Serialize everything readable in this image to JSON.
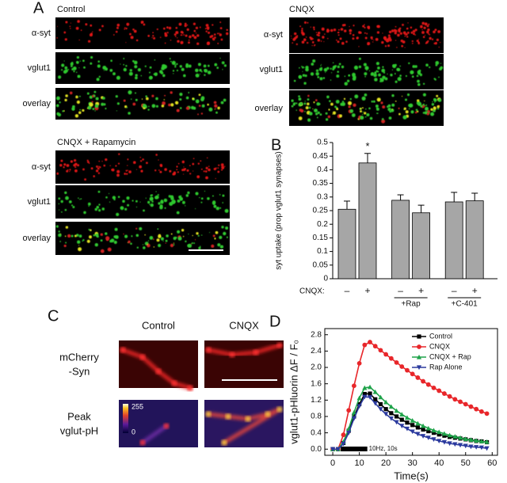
{
  "panels": {
    "a": {
      "label": "A",
      "control": "Control",
      "cnqx": "CNQX",
      "cnqx_rap": "CNQX + Rapamycin",
      "rows": [
        "α-syt",
        "vglut1",
        "overlay"
      ]
    },
    "b": {
      "label": "B"
    },
    "c": {
      "label": "C",
      "control": "Control",
      "cnqx": "CNQX",
      "row1": [
        "mCherry",
        "-Syn"
      ],
      "row2": [
        "Peak",
        "vglut-pH"
      ],
      "colorbar": [
        "255",
        "0"
      ]
    },
    "d": {
      "label": "D"
    }
  },
  "chart_data": [
    {
      "type": "bar",
      "ylabel": "syt uptake (prop vglut1 synapses)",
      "category_title": "CNQX:",
      "categories": [
        "–",
        "+",
        "–",
        "+",
        "–",
        "+"
      ],
      "group_labels": [
        null,
        "+Rap",
        "+C-401"
      ],
      "values": [
        0.255,
        0.425,
        0.288,
        0.242,
        0.282,
        0.286
      ],
      "errors": [
        0.03,
        0.035,
        0.02,
        0.028,
        0.035,
        0.028
      ],
      "color": "#a6a6a6",
      "annotation": "*",
      "ylim": [
        0,
        0.5
      ],
      "yticks": [
        0,
        0.05,
        0.1,
        0.15,
        0.2,
        0.25,
        0.3,
        0.35,
        0.4,
        0.45,
        0.5
      ]
    },
    {
      "type": "line",
      "ylabel": "vglut1-pHluorin ΔF / F₀",
      "xlabel": "Time(s)",
      "x": [
        0,
        2,
        4,
        6,
        8,
        10,
        12,
        14,
        16,
        18,
        20,
        22,
        24,
        26,
        28,
        30,
        32,
        34,
        36,
        38,
        40,
        42,
        44,
        46,
        48,
        50,
        52,
        54,
        56,
        58
      ],
      "series": [
        {
          "name": "Control",
          "color": "#000000",
          "marker": "square",
          "values": [
            0,
            0,
            0.15,
            0.45,
            0.8,
            1.1,
            1.35,
            1.36,
            1.22,
            1.1,
            0.98,
            0.88,
            0.8,
            0.72,
            0.65,
            0.59,
            0.53,
            0.48,
            0.44,
            0.4,
            0.36,
            0.33,
            0.3,
            0.28,
            0.26,
            0.24,
            0.22,
            0.2,
            0.19,
            0.17
          ]
        },
        {
          "name": "CNQX",
          "color": "#e8262a",
          "marker": "circle",
          "values": [
            0,
            0,
            0.35,
            0.95,
            1.55,
            2.1,
            2.55,
            2.62,
            2.52,
            2.42,
            2.32,
            2.22,
            2.12,
            2.02,
            1.93,
            1.84,
            1.75,
            1.66,
            1.58,
            1.5,
            1.43,
            1.36,
            1.29,
            1.22,
            1.16,
            1.1,
            1.04,
            0.98,
            0.92,
            0.87
          ]
        },
        {
          "name": "CNQX + Rap",
          "color": "#1fa34a",
          "marker": "triangle-up",
          "values": [
            0,
            0,
            0.18,
            0.5,
            0.9,
            1.25,
            1.5,
            1.52,
            1.4,
            1.27,
            1.15,
            1.04,
            0.94,
            0.85,
            0.77,
            0.7,
            0.63,
            0.57,
            0.51,
            0.46,
            0.42,
            0.38,
            0.34,
            0.31,
            0.28,
            0.25,
            0.23,
            0.21,
            0.19,
            0.18
          ]
        },
        {
          "name": "Rap Alone",
          "color": "#2b3a9e",
          "marker": "triangle-down",
          "values": [
            0,
            0,
            0.13,
            0.4,
            0.75,
            1.05,
            1.28,
            1.27,
            1.12,
            0.98,
            0.86,
            0.75,
            0.66,
            0.57,
            0.5,
            0.43,
            0.37,
            0.32,
            0.28,
            0.24,
            0.2,
            0.17,
            0.14,
            0.12,
            0.1,
            0.08,
            0.06,
            0.05,
            0.04,
            0.02
          ]
        }
      ],
      "stimulus": {
        "label": "10Hz, 10s",
        "x": [
          3,
          13
        ]
      },
      "legend": "upper right",
      "xlim": [
        -3,
        62
      ],
      "xticks": [
        0,
        10,
        20,
        30,
        40,
        50,
        60
      ],
      "ylim": [
        -0.15,
        2.95
      ],
      "yticks": [
        {
          "value": 0,
          "label": "0.0"
        },
        0.4,
        0.8,
        1.2,
        1.6,
        {
          "value": 2,
          "label": "2.0"
        },
        2.4,
        2.8
      ]
    }
  ]
}
